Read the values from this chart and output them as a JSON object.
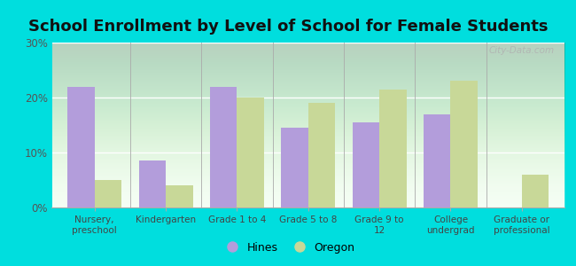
{
  "title": "School Enrollment by Level of School for Female Students",
  "categories": [
    "Nursery,\npreschool",
    "Kindergarten",
    "Grade 1 to 4",
    "Grade 5 to 8",
    "Grade 9 to\n12",
    "College\nundergrad",
    "Graduate or\nprofessional"
  ],
  "hines": [
    22.0,
    8.5,
    22.0,
    14.5,
    15.5,
    17.0,
    0.0
  ],
  "oregon": [
    5.0,
    4.0,
    20.0,
    19.0,
    21.5,
    23.0,
    6.0
  ],
  "hines_color": "#b39ddb",
  "oregon_color": "#c8d898",
  "background_outer": "#00dede",
  "background_inner_top": "#e0f0e0",
  "background_inner_bottom": "#f5fff5",
  "ylim": [
    0,
    30
  ],
  "yticks": [
    0,
    10,
    20,
    30
  ],
  "yticklabels": [
    "0%",
    "10%",
    "20%",
    "30%"
  ],
  "title_fontsize": 13,
  "legend_labels": [
    "Hines",
    "Oregon"
  ],
  "bar_width": 0.38,
  "watermark": "City-Data.com"
}
